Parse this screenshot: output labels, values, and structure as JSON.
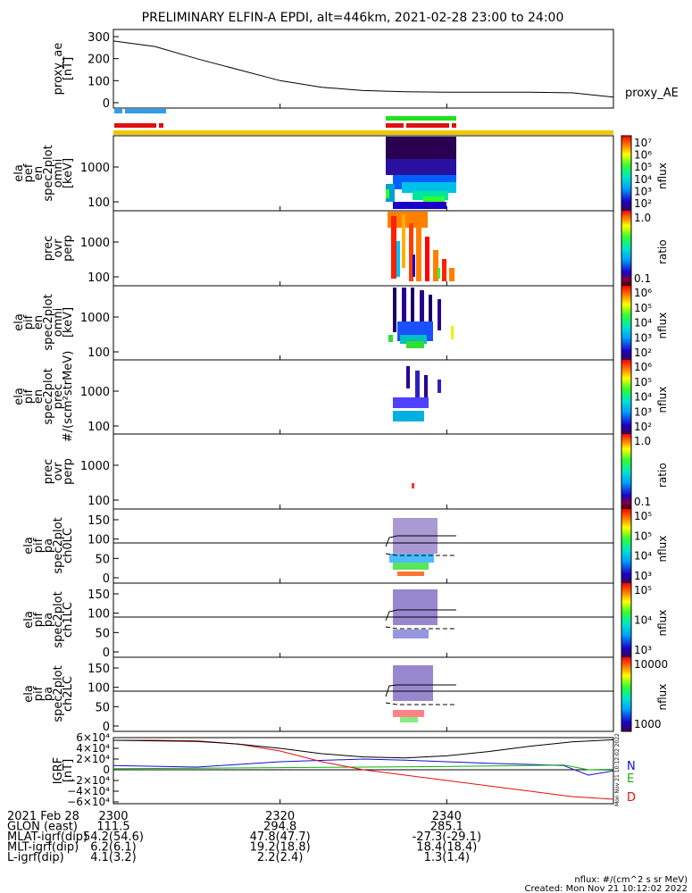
{
  "title": "PRELIMINARY ELFIN-A EPDI, alt=446km, 2021-02-28 23:00 to 24:00",
  "panels": [
    {
      "ylabel": [
        "proxy_ae",
        "[nT]"
      ],
      "right_label": "proxy_AE"
    },
    {
      "ylabel": [
        "ela",
        "pef",
        "en",
        "spec2plot",
        "omni",
        "[keV]"
      ],
      "cbar_label": "nflux"
    },
    {
      "ylabel": [
        "prec",
        "ovr",
        "perp"
      ],
      "cbar_label": "ratio"
    },
    {
      "ylabel": [
        "ela",
        "pif",
        "en",
        "spec2plot",
        "omni",
        "[keV]"
      ],
      "cbar_label": "nflux"
    },
    {
      "ylabel": [
        "ela",
        "pif",
        "en",
        "spec2plot",
        "prec",
        "#/(scm²strMeV)"
      ],
      "cbar_label": "nflux"
    },
    {
      "ylabel": [
        "prec",
        "ovr",
        "perp"
      ],
      "cbar_label": "ratio"
    },
    {
      "ylabel": [
        "ela",
        "pif",
        "pa",
        "spec2plot",
        "ch0LC"
      ],
      "cbar_label": "nflux"
    },
    {
      "ylabel": [
        "ela",
        "pif",
        "pa",
        "spec2plot",
        "ch1LC"
      ],
      "cbar_label": "nflux"
    },
    {
      "ylabel": [
        "ela",
        "pif",
        "pa",
        "spec2plot",
        "ch2LC"
      ],
      "cbar_label": "nflux"
    },
    {
      "ylabel": [
        "IGRF",
        "[nT]"
      ],
      "right_labels": [
        "N",
        "E",
        "D"
      ]
    }
  ],
  "colors": {
    "blue_bar": "#2a9df4",
    "green_bar": "#1ee31e",
    "red_bar": "#e01010",
    "yellow_bar": "#f0c800",
    "line_N": "#1010d0",
    "line_E": "#10b010",
    "line_D": "#e01010"
  },
  "chart_data": {
    "type": "line",
    "x_range": [
      "2300",
      "2400"
    ],
    "proxy_ae": {
      "ylim": [
        0,
        300
      ],
      "yticks": [
        "300",
        "200",
        "100",
        "0"
      ],
      "x": [
        0,
        5,
        10,
        15,
        20,
        25,
        30,
        35,
        40,
        45,
        50,
        55,
        60
      ],
      "y": [
        280,
        255,
        200,
        150,
        100,
        70,
        55,
        50,
        48,
        48,
        48,
        45,
        25
      ]
    },
    "spectrogram_yticks": [
      "1000",
      "100"
    ],
    "ratio_yticks": [
      "1000",
      "100"
    ],
    "pa_yticks": [
      "150",
      "100",
      "50",
      "0"
    ],
    "igrf": {
      "yticks": [
        "6×10⁴",
        "4×10⁴",
        "2×10⁴",
        "0",
        "−2×10⁴",
        "−4×10⁴",
        "−6×10⁴"
      ],
      "ylim": [
        -60000,
        60000
      ],
      "series": [
        {
          "name": "N",
          "x": [
            0,
            10,
            20,
            30,
            35,
            40,
            45,
            50,
            54,
            57,
            60
          ],
          "y": [
            8000,
            5000,
            15000,
            20000,
            18000,
            15000,
            12000,
            10000,
            8000,
            -10000,
            -2000
          ]
        },
        {
          "name": "E",
          "x": [
            0,
            10,
            20,
            30,
            40,
            50,
            54,
            57,
            60
          ],
          "y": [
            2000,
            3000,
            4000,
            5000,
            6000,
            8000,
            9000,
            0,
            1000
          ]
        },
        {
          "name": "D",
          "x": [
            0,
            5,
            10,
            15,
            20,
            25,
            30,
            35,
            40,
            45,
            50,
            55,
            60
          ],
          "y": [
            55000,
            55000,
            54000,
            48000,
            35000,
            15000,
            0,
            -10000,
            -20000,
            -30000,
            -40000,
            -50000,
            -55000
          ]
        },
        {
          "name": "total",
          "x": [
            0,
            5,
            10,
            15,
            20,
            25,
            30,
            35,
            40,
            45,
            50,
            55,
            60
          ],
          "y": [
            55000,
            54000,
            53000,
            48000,
            40000,
            30000,
            24000,
            22000,
            26000,
            34000,
            44000,
            52000,
            56000
          ]
        }
      ]
    },
    "colorbars": [
      {
        "labels": [
          "10⁷",
          "10⁶",
          "10⁵",
          "10⁴",
          "10³",
          "10²"
        ]
      },
      {
        "labels": [
          "1.0",
          "0.1"
        ]
      },
      {
        "labels": [
          "10⁶",
          "10⁵",
          "10⁴",
          "10³",
          "10²"
        ]
      },
      {
        "labels": [
          "10⁶",
          "10⁵",
          "10⁴",
          "10³",
          "10²"
        ]
      },
      {
        "labels": [
          "1.0",
          "0.1"
        ]
      },
      {
        "labels": [
          "10⁵",
          "10⁵",
          "10⁴",
          "10³"
        ]
      },
      {
        "labels": [
          "10⁵",
          "10⁴",
          "10³"
        ]
      },
      {
        "labels": [
          "10000",
          "1000"
        ]
      }
    ]
  },
  "xaxis": {
    "tick_labels": [
      "2300",
      "2320",
      "2340"
    ],
    "rows": [
      {
        "label": "2021 Feb 28",
        "values": [
          "2300",
          "2320",
          "2340"
        ]
      },
      {
        "label": "GLON (east)",
        "values": [
          "111.5",
          "294.8",
          "285.1"
        ]
      },
      {
        "label": "MLAT-igrf(dip)",
        "values": [
          "54.2(54.6)",
          "47.8(47.7)",
          "-27.3(-29.1)"
        ]
      },
      {
        "label": "MLT-igrf(dip)",
        "values": [
          "6.2(6.1)",
          "19.2(18.8)",
          "18.4(18.4)"
        ]
      },
      {
        "label": "L-igrf(dip)",
        "values": [
          "4.1(3.2)",
          "2.2(2.4)",
          "1.3(1.4)"
        ]
      }
    ]
  },
  "footer": {
    "units": "nflux: #/(cm^2 s sr MeV)",
    "created": "Created: Mon Nov 21 10:12:02 2022",
    "vertical_stamp": "Mon Nov 21 10:12:02 2022"
  }
}
